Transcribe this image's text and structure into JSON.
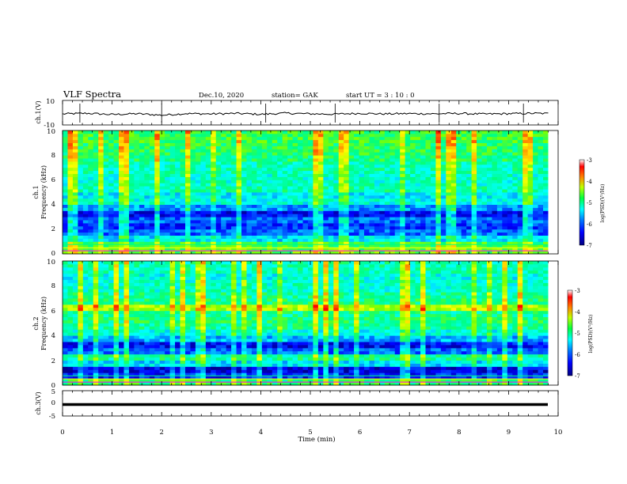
{
  "header": {
    "title": "VLF Spectra",
    "date": "Dec.10, 2020",
    "station": "station= GAK",
    "start_time": "start  UT =  3 : 10 : 0"
  },
  "colors": {
    "colormap": [
      "#00007f",
      "#0000ff",
      "#0080ff",
      "#00ffff",
      "#00ff80",
      "#80ff00",
      "#ffff00",
      "#ff8000",
      "#ff0000",
      "#ffffff"
    ]
  },
  "chart_data": [
    {
      "type": "line",
      "name": "ch1-waveform",
      "ylabel": "ch.1(V)",
      "ylim": [
        -10,
        10
      ],
      "yticks": [
        "10",
        "-10"
      ],
      "x": [
        0,
        0.5,
        1.0,
        1.5,
        2.0,
        2.5,
        3.0,
        3.5,
        4.0,
        4.5,
        5.0,
        5.5,
        6.0,
        6.5,
        7.0,
        7.5,
        8.0,
        8.5,
        9.0,
        9.5,
        9.8
      ],
      "y": [
        -1,
        -0.5,
        -1.5,
        -0.8,
        -2,
        -0.7,
        -1,
        -0.6,
        -1.3,
        -0.4,
        -0.9,
        -1.2,
        -0.5,
        -1,
        -0.7,
        -0.9,
        -0.6,
        -1.1,
        -0.8,
        -0.5,
        -0.7
      ]
    },
    {
      "type": "heatmap",
      "name": "ch1-spectrogram",
      "ylabel": "ch.1",
      "ylabel2": "Frequency (kHz)",
      "ylim": [
        0,
        10
      ],
      "yticks": [
        "0",
        "2",
        "4",
        "6",
        "8",
        "10"
      ],
      "colorbar_label": "log(PSD)(V²/Hz)",
      "colorbar_ticks": [
        "-3",
        "-4",
        "-5",
        "-6",
        "-7"
      ],
      "colorbar_range": [
        -7,
        -3
      ],
      "profile_psd": [
        -4.6,
        -4.8,
        -5.6,
        -6.1,
        -6.3,
        -6.1,
        -6.5,
        -5.9,
        -5.4,
        -5.5,
        -5.2,
        -5.3,
        -5.3,
        -5.2,
        -5.2,
        -5.0,
        -4.9,
        -4.9,
        -4.8,
        -4.8
      ]
    },
    {
      "type": "heatmap",
      "name": "ch2-spectrogram",
      "ylabel": "ch.2",
      "ylabel2": "Frequency (kHz)",
      "ylim": [
        0,
        10
      ],
      "yticks": [
        "0",
        "2",
        "4",
        "6",
        "8",
        "10"
      ],
      "colorbar_label": "log(PSD)(V²/Hz)",
      "colorbar_ticks": [
        "-3",
        "-4",
        "-5",
        "-6",
        "-7"
      ],
      "colorbar_range": [
        -7,
        -3
      ],
      "profile_psd": [
        -4.9,
        -6.4,
        -6.6,
        -5.6,
        -5.1,
        -6.1,
        -6.5,
        -5.8,
        -5.4,
        -5.1,
        -5.0,
        -5.1,
        -4.3,
        -5.0,
        -5.1,
        -5.3,
        -5.3,
        -5.4,
        -5.2,
        -5.2
      ]
    },
    {
      "type": "line",
      "name": "ch3-waveform",
      "ylabel": "ch.3(V)",
      "ylim": [
        -5,
        5
      ],
      "yticks": [
        "5",
        "0",
        "-5"
      ],
      "x": [
        0,
        9.8
      ],
      "y": [
        -1,
        -1
      ]
    }
  ],
  "xaxis": {
    "label": "Time (min)",
    "range": [
      0,
      10
    ],
    "ticks": [
      "0",
      "1",
      "2",
      "3",
      "4",
      "5",
      "6",
      "7",
      "8",
      "9",
      "10"
    ]
  }
}
